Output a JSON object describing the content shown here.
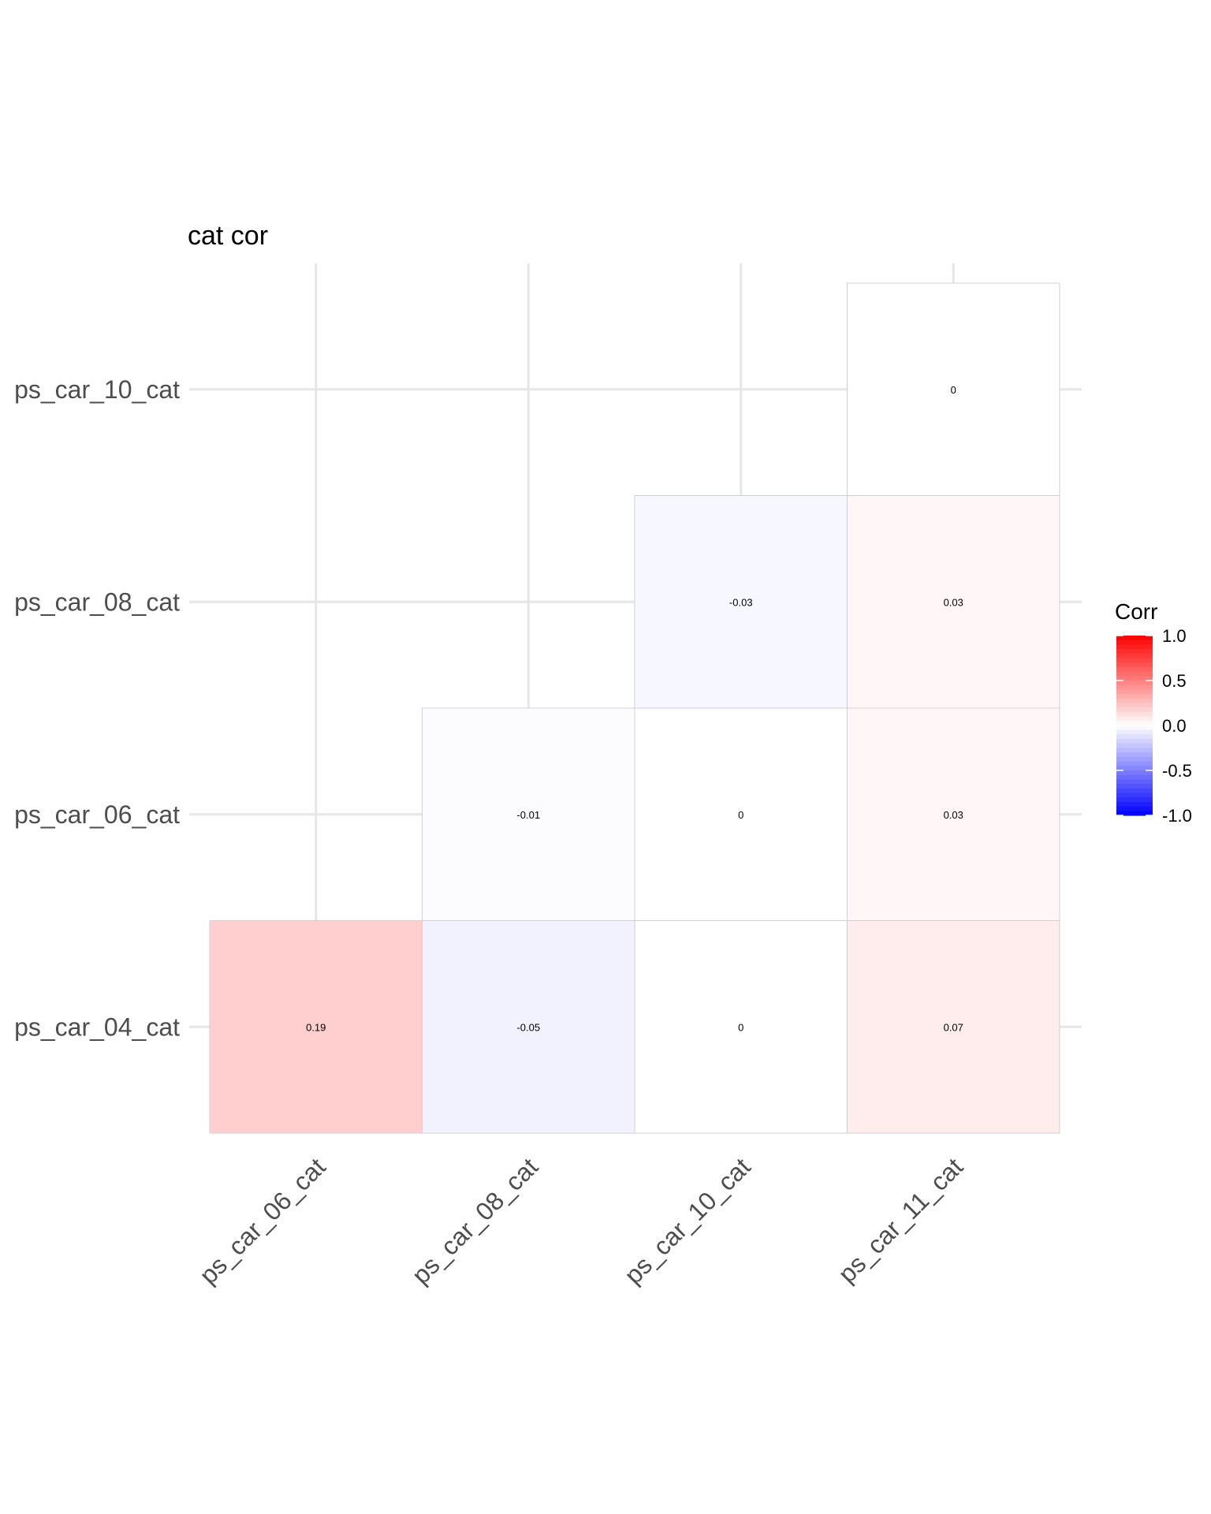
{
  "chart_data": {
    "type": "heatmap",
    "title": "cat cor",
    "x_categories": [
      "ps_car_06_cat",
      "ps_car_08_cat",
      "ps_car_10_cat",
      "ps_car_11_cat"
    ],
    "y_categories": [
      "ps_car_04_cat",
      "ps_car_06_cat",
      "ps_car_08_cat",
      "ps_car_10_cat"
    ],
    "cells": [
      {
        "x": "ps_car_06_cat",
        "y": "ps_car_04_cat",
        "value": 0.19,
        "label": "0.19"
      },
      {
        "x": "ps_car_08_cat",
        "y": "ps_car_04_cat",
        "value": -0.05,
        "label": "-0.05"
      },
      {
        "x": "ps_car_10_cat",
        "y": "ps_car_04_cat",
        "value": 0,
        "label": "0"
      },
      {
        "x": "ps_car_11_cat",
        "y": "ps_car_04_cat",
        "value": 0.07,
        "label": "0.07"
      },
      {
        "x": "ps_car_08_cat",
        "y": "ps_car_06_cat",
        "value": -0.01,
        "label": "-0.01"
      },
      {
        "x": "ps_car_10_cat",
        "y": "ps_car_06_cat",
        "value": 0,
        "label": "0"
      },
      {
        "x": "ps_car_11_cat",
        "y": "ps_car_06_cat",
        "value": 0.03,
        "label": "0.03"
      },
      {
        "x": "ps_car_10_cat",
        "y": "ps_car_08_cat",
        "value": -0.03,
        "label": "-0.03"
      },
      {
        "x": "ps_car_11_cat",
        "y": "ps_car_08_cat",
        "value": 0.03,
        "label": "0.03"
      },
      {
        "x": "ps_car_11_cat",
        "y": "ps_car_10_cat",
        "value": 0,
        "label": "0"
      }
    ],
    "color_scale": {
      "low": "#0000ff",
      "mid": "#ffffff",
      "high": "#ff0000",
      "limits": [
        -1,
        1
      ]
    },
    "legend": {
      "title": "Corr",
      "position": "right",
      "breaks": [
        1.0,
        0.5,
        0.0,
        -0.5,
        -1.0
      ],
      "labels": [
        "1.0",
        "0.5",
        "0.0",
        "-0.5",
        "-1.0"
      ]
    },
    "grid": true
  }
}
